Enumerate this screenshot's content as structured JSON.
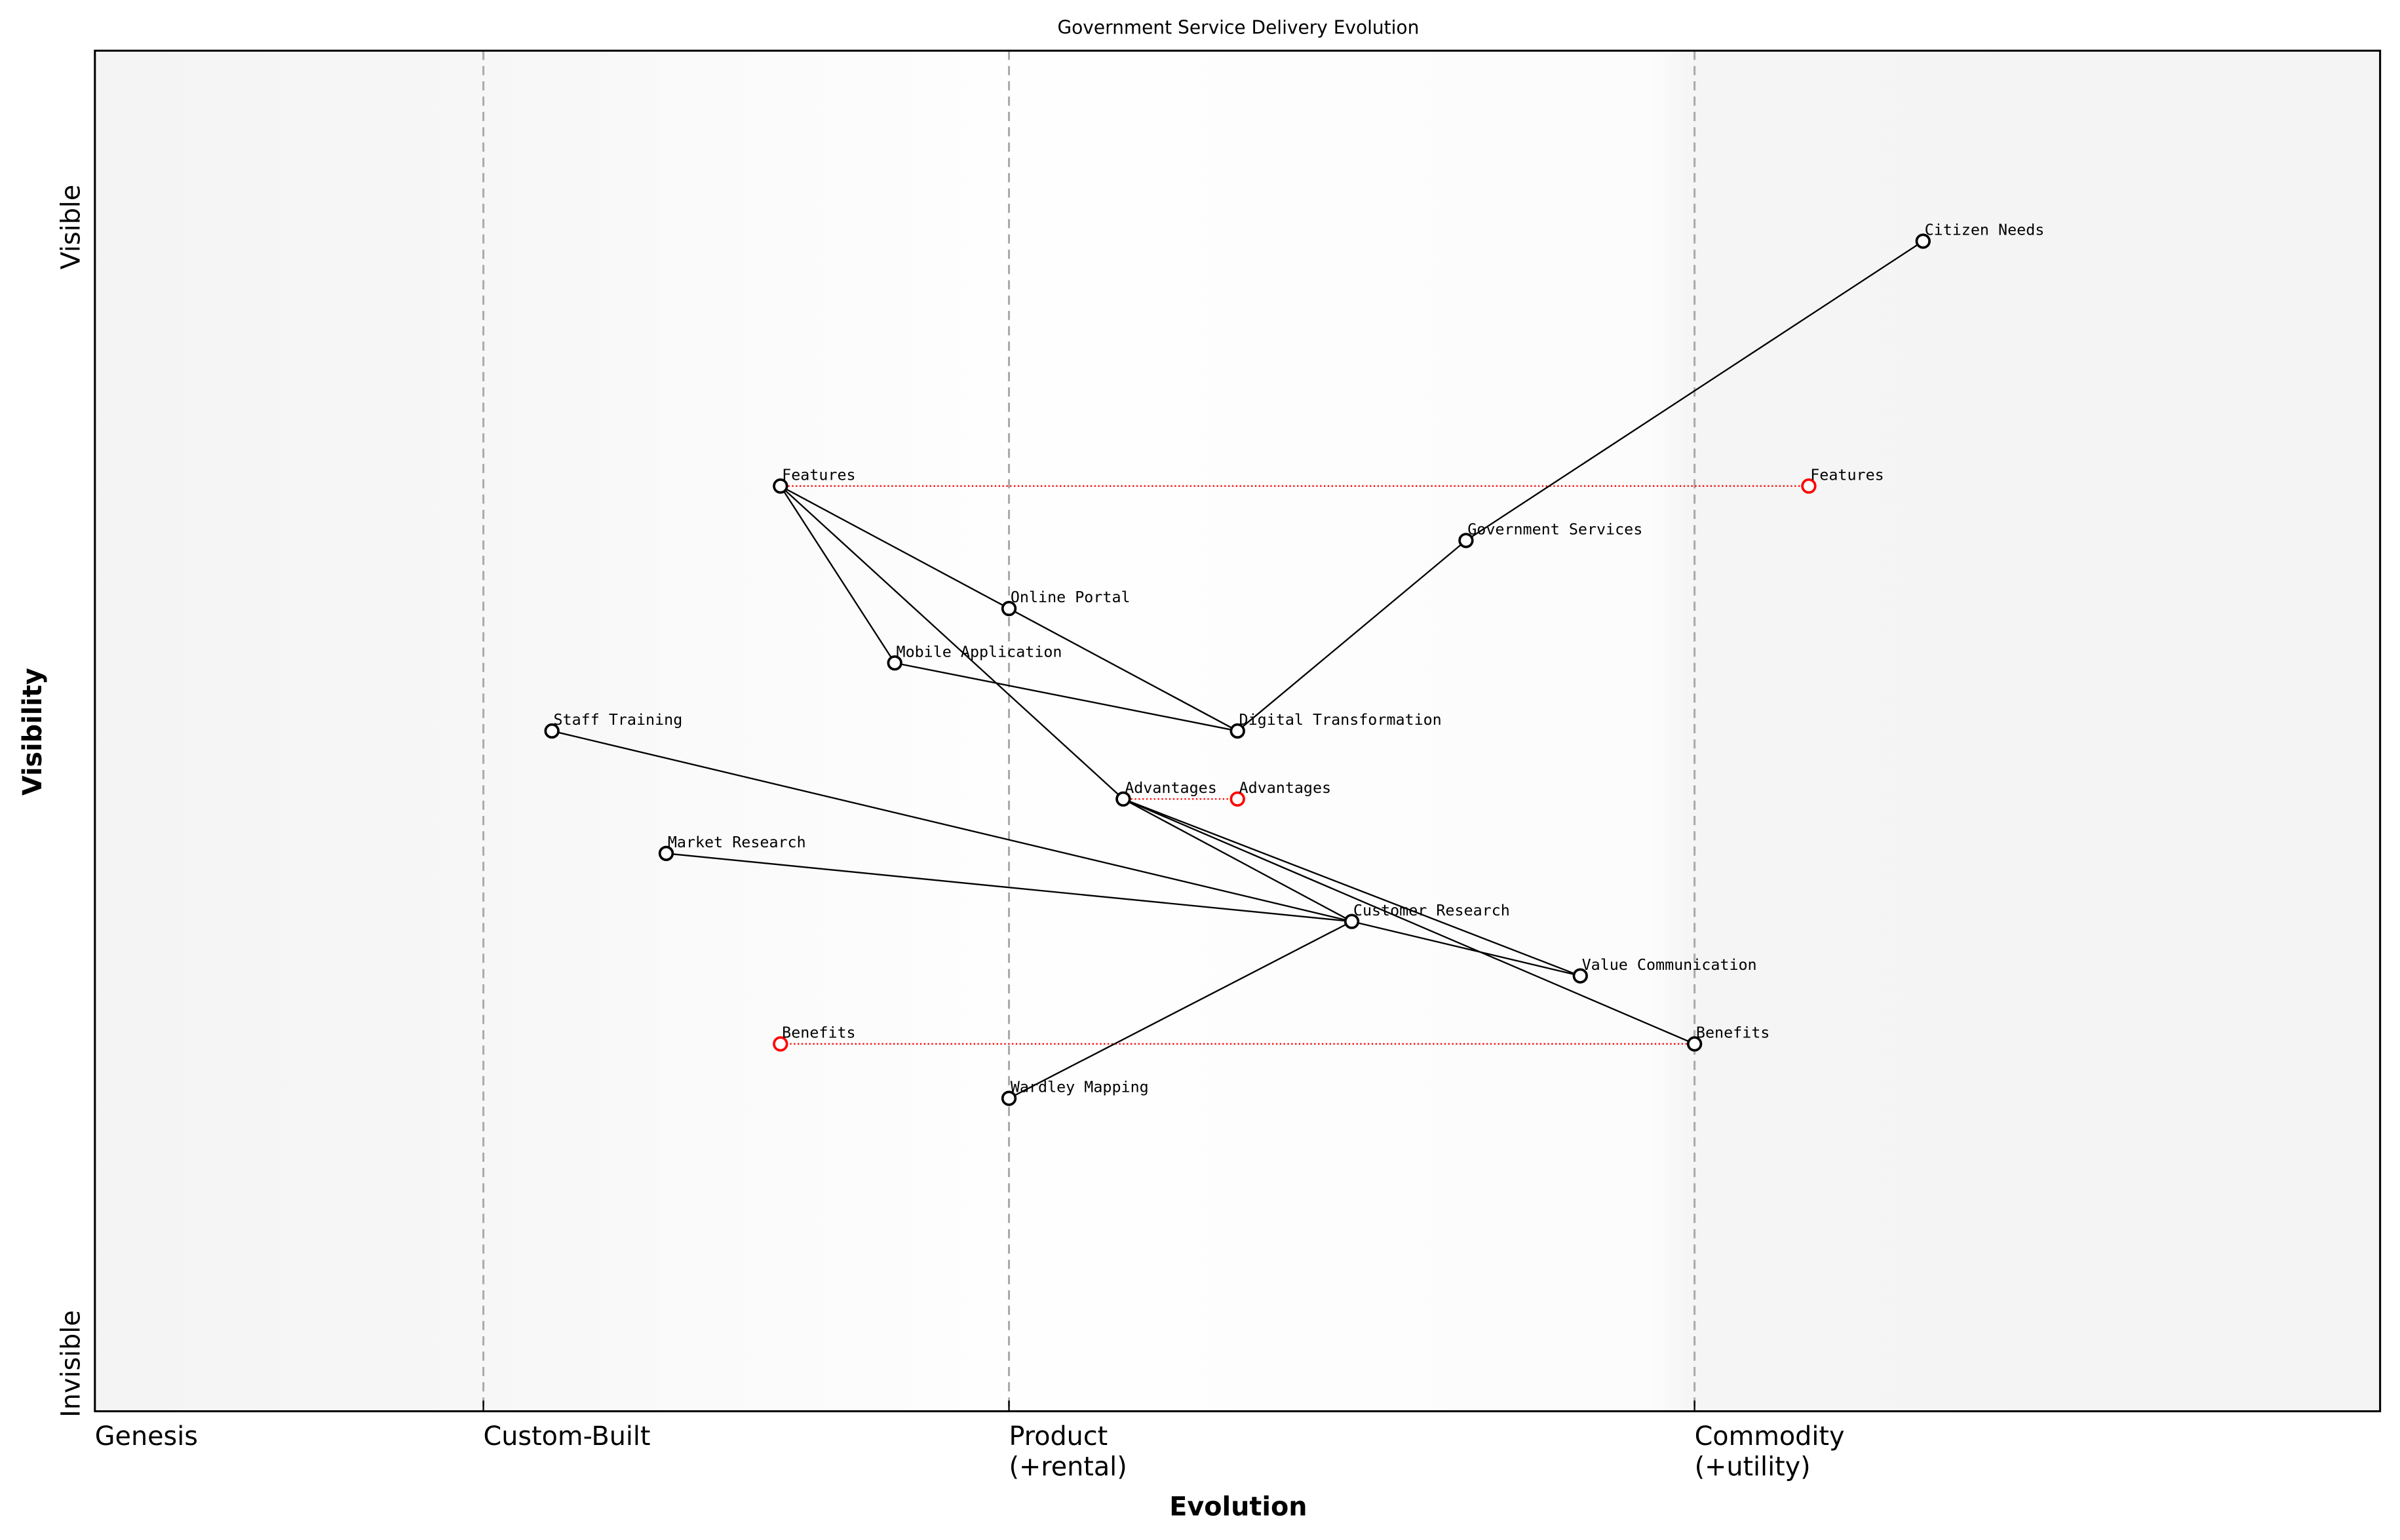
{
  "chart_data": {
    "type": "wardley-map",
    "title": "Government Service Delivery Evolution",
    "xlabel": "Evolution",
    "ylabel": "Visibility",
    "xlim": [
      0,
      1
    ],
    "ylim": [
      0,
      1
    ],
    "y_top_label": "Visible",
    "y_bottom_label": "Invisible",
    "stages": [
      {
        "label": "Genesis",
        "x": 0.0,
        "boundary": false
      },
      {
        "label": "Custom-Built",
        "x": 0.17,
        "boundary": true
      },
      {
        "label": "Product\n(+rental)",
        "x": 0.4,
        "boundary": true
      },
      {
        "label": "Commodity\n(+utility)",
        "x": 0.7,
        "boundary": true
      }
    ],
    "nodes": [
      {
        "id": "citizen",
        "label": "Citizen Needs",
        "evolution": 0.8,
        "visibility": 0.86
      },
      {
        "id": "features",
        "label": "Features",
        "evolution": 0.3,
        "visibility": 0.68
      },
      {
        "id": "gov",
        "label": "Government Services",
        "evolution": 0.6,
        "visibility": 0.64
      },
      {
        "id": "portal",
        "label": "Online Portal",
        "evolution": 0.4,
        "visibility": 0.59
      },
      {
        "id": "mobile",
        "label": "Mobile Application",
        "evolution": 0.35,
        "visibility": 0.55
      },
      {
        "id": "staff",
        "label": "Staff Training",
        "evolution": 0.2,
        "visibility": 0.5
      },
      {
        "id": "digital",
        "label": "Digital Transformation",
        "evolution": 0.5,
        "visibility": 0.5
      },
      {
        "id": "advantages",
        "label": "Advantages",
        "evolution": 0.45,
        "visibility": 0.45
      },
      {
        "id": "market",
        "label": "Market Research",
        "evolution": 0.25,
        "visibility": 0.41
      },
      {
        "id": "customer",
        "label": "Customer Research",
        "evolution": 0.55,
        "visibility": 0.36
      },
      {
        "id": "value",
        "label": "Value Communication",
        "evolution": 0.65,
        "visibility": 0.32
      },
      {
        "id": "benefits",
        "label": "Benefits",
        "evolution": 0.7,
        "visibility": 0.27
      },
      {
        "id": "wardley",
        "label": "Wardley Mapping",
        "evolution": 0.4,
        "visibility": 0.23
      }
    ],
    "evolved_nodes": [
      {
        "from": "features",
        "label": "Features",
        "evolution": 0.75,
        "visibility": 0.68
      },
      {
        "from": "advantages",
        "label": "Advantages",
        "evolution": 0.5,
        "visibility": 0.45
      },
      {
        "from": "benefits",
        "label": "Benefits",
        "evolution": 0.3,
        "visibility": 0.27
      }
    ],
    "links": [
      [
        "citizen",
        "gov"
      ],
      [
        "gov",
        "digital"
      ],
      [
        "digital",
        "portal"
      ],
      [
        "digital",
        "mobile"
      ],
      [
        "portal",
        "features"
      ],
      [
        "mobile",
        "features"
      ],
      [
        "features",
        "advantages"
      ],
      [
        "advantages",
        "customer"
      ],
      [
        "advantages",
        "value"
      ],
      [
        "advantages",
        "benefits"
      ],
      [
        "staff",
        "value"
      ],
      [
        "market",
        "customer"
      ],
      [
        "customer",
        "wardley"
      ]
    ],
    "colors": {
      "node": "#000000",
      "evolved": "#ff0000",
      "boundary": "#aaaaaa"
    }
  }
}
